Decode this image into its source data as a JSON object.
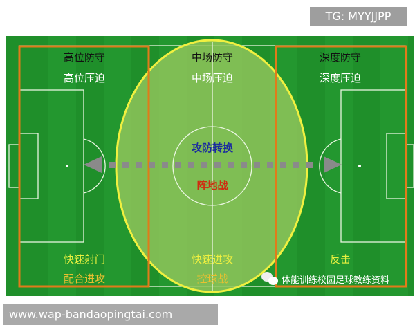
{
  "watermark_top": "TG: MYYJJPP",
  "watermark_bottom": "www.wap-bandaopingtai.com",
  "source_watermark": "体能训练校园足球教练资料",
  "zones": {
    "left": {
      "line1": "高位防守",
      "line2": "高位压迫",
      "line3": "快速射门",
      "line4": "配合进攻"
    },
    "middle": {
      "line1": "中场防守",
      "line2": "中场压迫",
      "line3": "快速进攻",
      "line4": "控球战"
    },
    "right": {
      "line1": "深度防守",
      "line2": "深度压迫",
      "line3": "反击"
    },
    "center": {
      "line1": "攻防转换",
      "line2": "阵地战"
    }
  },
  "colors": {
    "field": "#1f8f2a",
    "zone_box": "#e07b1a",
    "ellipse": "#f0f040",
    "ellipse_fill": "#8fc45a",
    "arrow": "#8a8a8a"
  }
}
